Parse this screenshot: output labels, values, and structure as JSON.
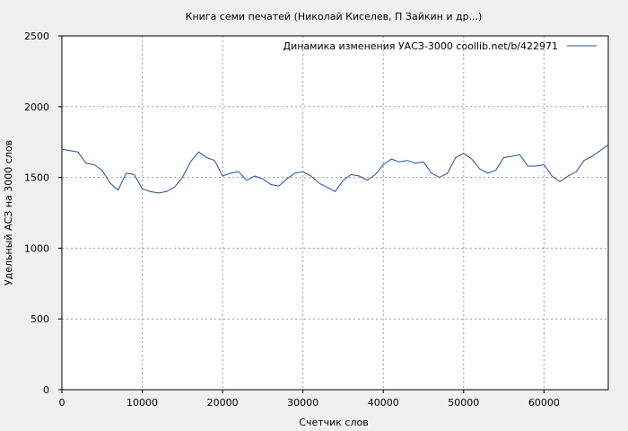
{
  "chart_data": {
    "type": "line",
    "title": "Книга семи печатей (Николай Киселев, П Зайкин и др...)",
    "xlabel": "Счетчик слов",
    "ylabel": "Удельный АСЗ на 3000 слов",
    "xlim": [
      0,
      68000
    ],
    "ylim": [
      0,
      2500
    ],
    "x_ticks": [
      0,
      10000,
      20000,
      30000,
      40000,
      50000,
      60000
    ],
    "x_tick_labels": [
      "0",
      "10000",
      "20000",
      "30000",
      "40000",
      "50000",
      "60000"
    ],
    "y_ticks": [
      0,
      500,
      1000,
      1500,
      2000,
      2500
    ],
    "y_tick_labels": [
      "0",
      "500",
      "1000",
      "1500",
      "2000",
      "2500"
    ],
    "grid": true,
    "legend_position": "top-right",
    "series_color": "#1f4fa0",
    "series": [
      {
        "name": "Динамика изменения УАСЗ-3000  coollib.net/b/422971",
        "x": [
          0,
          1000,
          2000,
          3000,
          4000,
          5000,
          6000,
          7000,
          8000,
          9000,
          10000,
          11000,
          12000,
          13000,
          14000,
          15000,
          16000,
          17000,
          18000,
          19000,
          20000,
          21000,
          22000,
          23000,
          24000,
          25000,
          26000,
          27000,
          28000,
          29000,
          30000,
          31000,
          32000,
          33000,
          34000,
          35000,
          36000,
          37000,
          38000,
          39000,
          40000,
          41000,
          42000,
          43000,
          44000,
          45000,
          46000,
          47000,
          48000,
          49000,
          50000,
          51000,
          52000,
          53000,
          54000,
          55000,
          56000,
          57000,
          58000,
          59000,
          60000,
          61000,
          62000,
          63000,
          64000,
          65000,
          66000,
          67000,
          68000
        ],
        "values": [
          1700,
          1690,
          1680,
          1600,
          1590,
          1550,
          1460,
          1410,
          1530,
          1520,
          1420,
          1400,
          1390,
          1400,
          1430,
          1500,
          1610,
          1680,
          1640,
          1620,
          1510,
          1530,
          1540,
          1480,
          1510,
          1490,
          1450,
          1440,
          1490,
          1530,
          1540,
          1510,
          1460,
          1430,
          1400,
          1480,
          1520,
          1510,
          1480,
          1520,
          1590,
          1630,
          1610,
          1620,
          1600,
          1610,
          1530,
          1500,
          1530,
          1640,
          1670,
          1630,
          1560,
          1530,
          1550,
          1640,
          1650,
          1660,
          1580,
          1580,
          1590,
          1510,
          1470,
          1510,
          1540,
          1620,
          1650,
          1690,
          1730
        ]
      }
    ]
  }
}
